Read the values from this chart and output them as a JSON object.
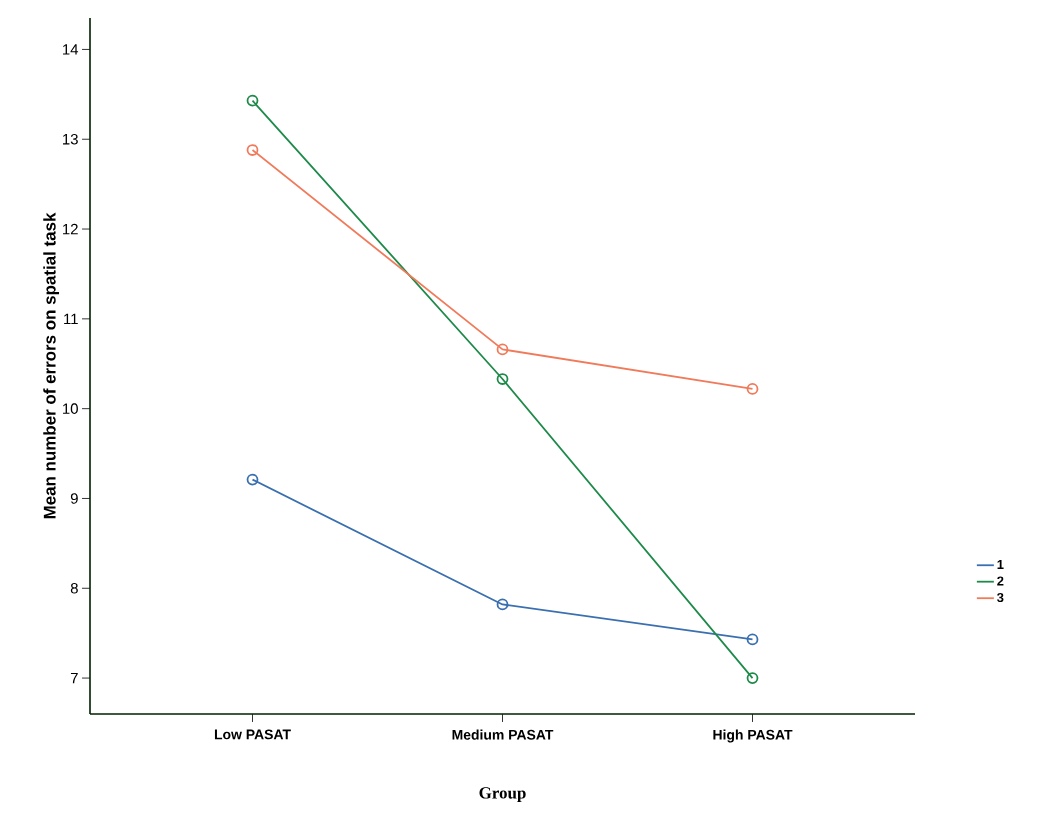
{
  "chart_data": {
    "type": "line",
    "xlabel": "Group",
    "ylabel": "Mean number of errors on spatial task",
    "categories": [
      "Low PASAT",
      "Medium PASAT",
      "High PASAT"
    ],
    "series": [
      {
        "name": "1",
        "color": "#3a6fb0",
        "values": [
          9.21,
          7.82,
          7.43
        ]
      },
      {
        "name": "2",
        "color": "#1e8a4a",
        "values": [
          13.43,
          10.33,
          7.0
        ]
      },
      {
        "name": "3",
        "color": "#f07a5a",
        "values": [
          12.88,
          10.66,
          10.22
        ]
      }
    ],
    "ylim": [
      6.6,
      14.35
    ],
    "yticks": [
      7,
      8,
      9,
      10,
      11,
      12,
      13,
      14
    ],
    "legend": "right",
    "marker": "circle",
    "line_style": "solid",
    "grid": false
  }
}
